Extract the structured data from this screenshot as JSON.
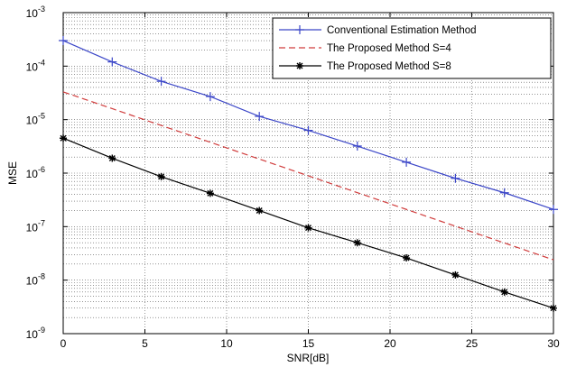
{
  "chart_data": {
    "type": "line",
    "xlabel": "SNR[dB]",
    "ylabel": "MSE",
    "xlim": [
      0,
      30
    ],
    "ylim": [
      1e-09,
      0.001
    ],
    "yscale": "log",
    "grid": "major and minor dotted",
    "legend_position": "top-right",
    "x_ticks": [
      "0",
      "5",
      "10",
      "15",
      "20",
      "25",
      "30"
    ],
    "y_ticks": [
      {
        "base": "10",
        "exp": "-9"
      },
      {
        "base": "10",
        "exp": "-8"
      },
      {
        "base": "10",
        "exp": "-7"
      },
      {
        "base": "10",
        "exp": "-6"
      },
      {
        "base": "10",
        "exp": "-5"
      },
      {
        "base": "10",
        "exp": "-4"
      },
      {
        "base": "10",
        "exp": "-3"
      }
    ],
    "series": [
      {
        "name": "Conventional Estimation Method",
        "color": "#3b46c8",
        "line_style": "solid",
        "marker": "plus",
        "x": [
          0,
          3,
          6,
          9,
          12,
          15,
          18,
          21,
          24,
          27,
          30
        ],
        "y": [
          0.0003,
          0.00012,
          5.2e-05,
          2.7e-05,
          1.15e-05,
          6.3e-06,
          3.2e-06,
          1.6e-06,
          8e-07,
          4.3e-07,
          2.1e-07
        ]
      },
      {
        "name": "The Proposed Method S=4",
        "color": "#d03c3c",
        "line_style": "dashed",
        "marker": "none",
        "x": [
          0,
          30
        ],
        "y": [
          3.3e-05,
          2.4e-08
        ]
      },
      {
        "name": "The Proposed Method S=8",
        "color": "#000000",
        "line_style": "solid",
        "marker": "star",
        "x": [
          0,
          3,
          6,
          9,
          12,
          15,
          18,
          21,
          24,
          27,
          30
        ],
        "y": [
          4.5e-06,
          1.9e-06,
          8.6e-07,
          4.2e-07,
          2e-07,
          9.5e-08,
          5e-08,
          2.6e-08,
          1.25e-08,
          6e-09,
          3e-09
        ]
      }
    ]
  }
}
